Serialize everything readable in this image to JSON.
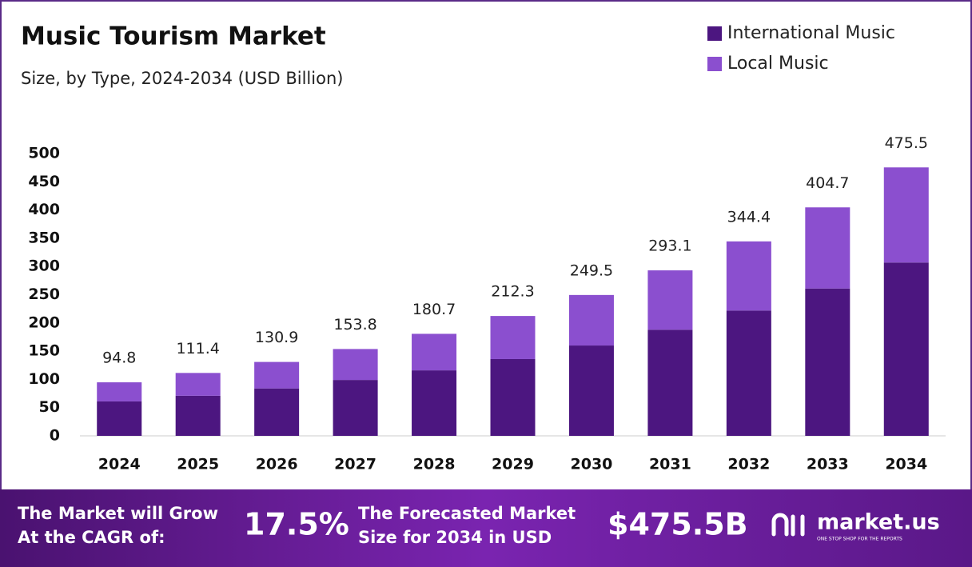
{
  "chart_data": {
    "type": "stacked_bar",
    "title": "Music Tourism Market",
    "subtitle": "Size, by Type, 2024-2034 (USD Billion)",
    "categories": [
      "2024",
      "2025",
      "2026",
      "2027",
      "2028",
      "2029",
      "2030",
      "2031",
      "2032",
      "2033",
      "2034"
    ],
    "series": [
      {
        "name": "International Music",
        "color": "#4c1680",
        "values": [
          61,
          71,
          84,
          99,
          116,
          136,
          160,
          188,
          222,
          261,
          307
        ]
      },
      {
        "name": "Local Music",
        "color": "#8b4fcf",
        "values": [
          33.8,
          40.4,
          46.9,
          54.8,
          64.7,
          76.3,
          89.5,
          105.1,
          122.4,
          143.7,
          168.5
        ]
      }
    ],
    "totals": [
      94.8,
      111.4,
      130.9,
      153.8,
      180.7,
      212.3,
      249.5,
      293.1,
      344.4,
      404.7,
      475.5
    ],
    "ylim": [
      0,
      500
    ],
    "yticks": [
      0,
      50,
      100,
      150,
      200,
      250,
      300,
      350,
      400,
      450,
      500
    ],
    "legend": "top-right",
    "grid": false
  },
  "footer": {
    "cagr_label": [
      "The Market will Grow",
      "At the CAGR of:"
    ],
    "cagr": "17.5%",
    "forecast_label": [
      "The Forecasted Market",
      "Size for 2034 in USD"
    ],
    "forecast": "$475.5B",
    "brand": "market.us",
    "tagline": "ONE STOP SHOP FOR THE REPORTS"
  }
}
